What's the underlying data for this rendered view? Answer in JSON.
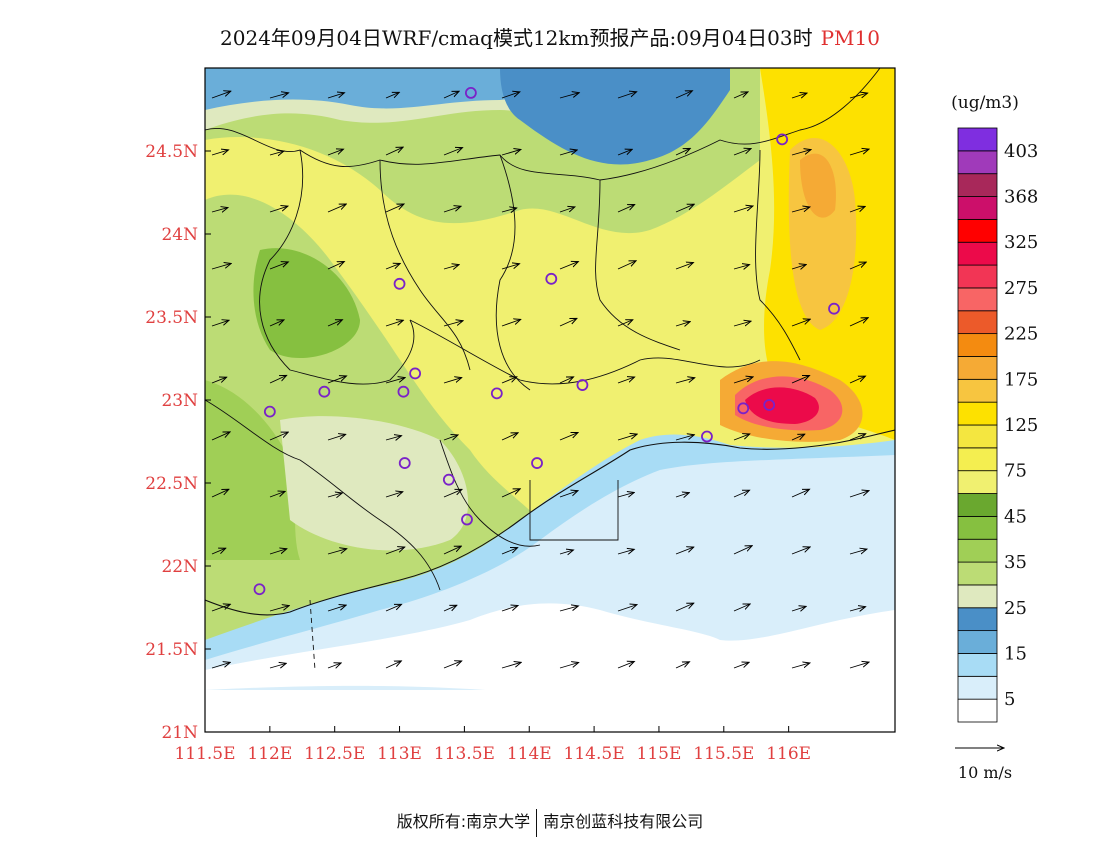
{
  "title": {
    "main": "2024年09月04日WRF/cmaq模式12km预报产品:09月04日03时",
    "pollutant": "PM10"
  },
  "x_ticks": [
    "111.5E",
    "112E",
    "112.5E",
    "113E",
    "113.5E",
    "114E",
    "114.5E",
    "115E",
    "115.5E",
    "116E"
  ],
  "y_ticks": [
    "21N",
    "21.5N",
    "22N",
    "22.5N",
    "23N",
    "23.5N",
    "24N",
    "24.5N"
  ],
  "legend": {
    "unit": "(ug/m3)",
    "labels": [
      "5",
      "15",
      "25",
      "35",
      "45",
      "75",
      "125",
      "175",
      "225",
      "275",
      "325",
      "368",
      "403"
    ],
    "colors": [
      "#ffffff",
      "#d9eefa",
      "#a8dcf5",
      "#6aaed9",
      "#4a8fc7",
      "#dfe9bf",
      "#bcdc75",
      "#a0cf56",
      "#86c040",
      "#6aa82f",
      "#f0f070",
      "#f4ee50",
      "#f4e640",
      "#fde100",
      "#f7c540",
      "#f5aa35",
      "#f48b10",
      "#ec5a2a",
      "#f86565",
      "#f23555",
      "#ec0a4a",
      "#ff0000",
      "#cc0f6a",
      "#a8285a",
      "#a03aba",
      "#7f2ee0"
    ],
    "wind_ref": "10 m/s"
  },
  "stations": [
    {
      "lon": 113.55,
      "lat": 24.85
    },
    {
      "lon": 115.95,
      "lat": 24.57
    },
    {
      "lon": 113.0,
      "lat": 23.7
    },
    {
      "lon": 114.17,
      "lat": 23.73
    },
    {
      "lon": 116.35,
      "lat": 23.55
    },
    {
      "lon": 112.42,
      "lat": 23.05
    },
    {
      "lon": 112.0,
      "lat": 22.93
    },
    {
      "lon": 113.03,
      "lat": 23.05
    },
    {
      "lon": 113.12,
      "lat": 23.16
    },
    {
      "lon": 113.75,
      "lat": 23.04
    },
    {
      "lon": 114.41,
      "lat": 23.09
    },
    {
      "lon": 113.04,
      "lat": 22.62
    },
    {
      "lon": 113.38,
      "lat": 22.52
    },
    {
      "lon": 114.06,
      "lat": 22.62
    },
    {
      "lon": 113.52,
      "lat": 22.28
    },
    {
      "lon": 111.92,
      "lat": 21.86
    },
    {
      "lon": 115.37,
      "lat": 22.78
    },
    {
      "lon": 115.65,
      "lat": 22.95
    },
    {
      "lon": 115.85,
      "lat": 22.97
    }
  ],
  "footer": {
    "left": "版权所有:南京大学",
    "right": "南京创蓝科技有限公司"
  }
}
